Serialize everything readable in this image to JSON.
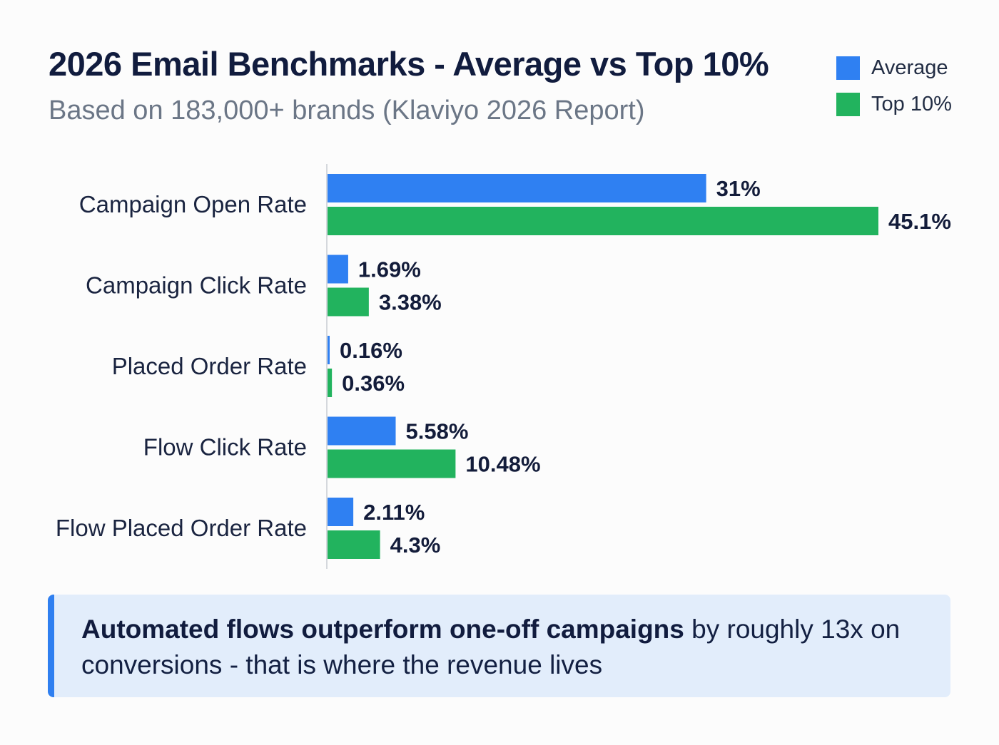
{
  "chart_data": {
    "type": "bar",
    "orientation": "horizontal",
    "title": "2026 Email Benchmarks - Average vs Top 10%",
    "subtitle": "Based on 183,000+ brands (Klaviyo 2026 Report)",
    "categories": [
      "Campaign Open Rate",
      "Campaign Click Rate",
      "Placed Order Rate",
      "Flow Click Rate",
      "Flow Placed Order Rate"
    ],
    "series": [
      {
        "name": "Average",
        "color": "#2f80f2",
        "values": [
          31,
          1.69,
          0.16,
          5.58,
          2.11
        ],
        "labels": [
          "31%",
          "1.69%",
          "0.16%",
          "5.58%",
          "2.11%"
        ]
      },
      {
        "name": "Top 10%",
        "color": "#22b35e",
        "values": [
          45.1,
          3.38,
          0.36,
          10.48,
          4.3
        ],
        "labels": [
          "45.1%",
          "3.38%",
          "0.36%",
          "10.48%",
          "4.3%"
        ]
      }
    ],
    "xlim": [
      0,
      45.1
    ],
    "grid": false,
    "legend_position": "top-right"
  },
  "callout": {
    "bold": "Automated flows outperform one-off campaigns",
    "rest": " by roughly 13x on conversions - that is where the revenue lives"
  }
}
